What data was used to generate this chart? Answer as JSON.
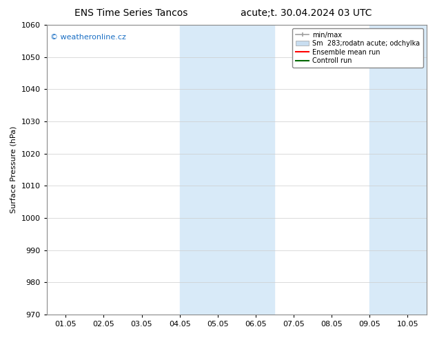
{
  "title_left": "ENS Time Series Tancos",
  "title_right": "acute;t. 30.04.2024 03 UTC",
  "ylabel": "Surface Pressure (hPa)",
  "ylim": [
    970,
    1060
  ],
  "yticks": [
    970,
    980,
    990,
    1000,
    1010,
    1020,
    1030,
    1040,
    1050,
    1060
  ],
  "xtick_positions": [
    0,
    1,
    2,
    3,
    4,
    5,
    6,
    7,
    8,
    9
  ],
  "xtick_labels": [
    "01.05",
    "02.05",
    "03.05",
    "04.05",
    "05.05",
    "06.05",
    "07.05",
    "08.05",
    "09.05",
    "10.05"
  ],
  "xlim": [
    -0.5,
    9.5
  ],
  "shaded_regions": [
    {
      "x_start": 3.0,
      "x_end": 5.5
    },
    {
      "x_start": 8.0,
      "x_end": 9.5
    }
  ],
  "shade_color": "#d8eaf8",
  "watermark_text": "© weatheronline.cz",
  "watermark_color": "#1a6fc4",
  "legend_entry_1_label": "min/max",
  "legend_entry_2_label": "Sm  283;rodatn acute; odchylka",
  "legend_entry_3_label": "Ensemble mean run",
  "legend_entry_4_label": "Controll run",
  "legend_entry_1_color": "#a0a0a0",
  "legend_entry_2_color": "#c8ddf0",
  "legend_entry_3_color": "#ff0000",
  "legend_entry_4_color": "#006600",
  "bg_color": "#ffffff",
  "grid_color": "#cccccc",
  "spine_color": "#888888",
  "title_fontsize": 10,
  "tick_fontsize": 8,
  "ylabel_fontsize": 8,
  "watermark_fontsize": 8,
  "legend_fontsize": 7
}
